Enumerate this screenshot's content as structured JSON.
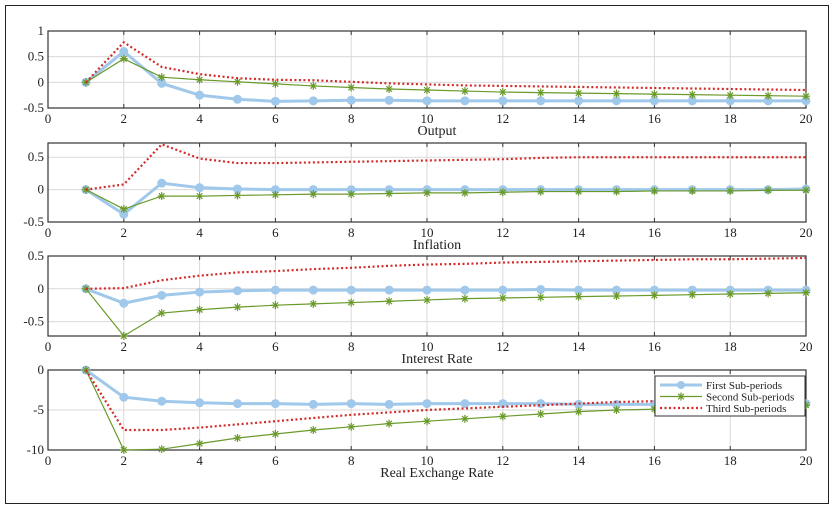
{
  "chart_data": [
    {
      "type": "line",
      "title": "Output",
      "x": [
        1,
        2,
        3,
        4,
        5,
        6,
        7,
        8,
        9,
        10,
        11,
        12,
        13,
        14,
        15,
        16,
        17,
        18,
        19,
        20
      ],
      "xlim": [
        0,
        20
      ],
      "xticks": [
        0,
        2,
        4,
        6,
        8,
        10,
        12,
        14,
        16,
        18,
        20
      ],
      "ylim": [
        -0.5,
        1
      ],
      "yticks": [
        -0.5,
        0,
        0.5,
        1
      ],
      "yticklabels": [
        "-0.5",
        "0",
        "0.5",
        "1"
      ],
      "grid": true,
      "series": [
        {
          "name": "First Sub-periods",
          "values": [
            0,
            0.6,
            -0.02,
            -0.25,
            -0.33,
            -0.37,
            -0.36,
            -0.35,
            -0.35,
            -0.36,
            -0.36,
            -0.36,
            -0.36,
            -0.36,
            -0.36,
            -0.36,
            -0.36,
            -0.36,
            -0.36,
            -0.36
          ]
        },
        {
          "name": "Second Sub-periods",
          "values": [
            0,
            0.46,
            0.1,
            0.05,
            0.01,
            -0.03,
            -0.07,
            -0.1,
            -0.13,
            -0.15,
            -0.17,
            -0.19,
            -0.2,
            -0.21,
            -0.22,
            -0.23,
            -0.24,
            -0.25,
            -0.26,
            -0.27
          ]
        },
        {
          "name": "Third Sub-periods",
          "values": [
            0,
            0.78,
            0.3,
            0.16,
            0.08,
            0.05,
            0.04,
            0.01,
            -0.02,
            -0.04,
            -0.06,
            -0.07,
            -0.08,
            -0.09,
            -0.1,
            -0.11,
            -0.12,
            -0.13,
            -0.14,
            -0.15
          ]
        }
      ]
    },
    {
      "type": "line",
      "title": "Inflation",
      "x": [
        1,
        2,
        3,
        4,
        5,
        6,
        7,
        8,
        9,
        10,
        11,
        12,
        13,
        14,
        15,
        16,
        17,
        18,
        19,
        20
      ],
      "xlim": [
        0,
        20
      ],
      "xticks": [
        0,
        2,
        4,
        6,
        8,
        10,
        12,
        14,
        16,
        18,
        20
      ],
      "ylim": [
        -0.5,
        0.72
      ],
      "yticks": [
        -0.5,
        0,
        0.5
      ],
      "yticklabels": [
        "-0.5",
        "0",
        "0.5"
      ],
      "grid": true,
      "series": [
        {
          "name": "First Sub-periods",
          "values": [
            0,
            -0.38,
            0.1,
            0.03,
            0.01,
            0,
            0,
            0,
            0,
            0,
            0,
            0,
            0,
            0,
            0,
            0,
            0,
            0,
            0,
            0.01
          ]
        },
        {
          "name": "Second Sub-periods",
          "values": [
            0,
            -0.3,
            -0.1,
            -0.1,
            -0.09,
            -0.08,
            -0.07,
            -0.07,
            -0.06,
            -0.05,
            -0.05,
            -0.04,
            -0.03,
            -0.03,
            -0.03,
            -0.02,
            -0.02,
            -0.02,
            -0.01,
            -0.01
          ]
        },
        {
          "name": "Third Sub-periods",
          "values": [
            0,
            0.08,
            0.7,
            0.48,
            0.41,
            0.41,
            0.42,
            0.43,
            0.44,
            0.45,
            0.46,
            0.47,
            0.49,
            0.5,
            0.5,
            0.5,
            0.5,
            0.5,
            0.5,
            0.5
          ]
        }
      ]
    },
    {
      "type": "line",
      "title": "Interest Rate",
      "x": [
        1,
        2,
        3,
        4,
        5,
        6,
        7,
        8,
        9,
        10,
        11,
        12,
        13,
        14,
        15,
        16,
        17,
        18,
        19,
        20
      ],
      "xlim": [
        0,
        20
      ],
      "xticks": [
        0,
        2,
        4,
        6,
        8,
        10,
        12,
        14,
        16,
        18,
        20
      ],
      "ylim": [
        -0.72,
        0.5
      ],
      "yticks": [
        -0.5,
        0,
        0.5
      ],
      "yticklabels": [
        "-0.5",
        "0",
        "0.5"
      ],
      "grid": true,
      "series": [
        {
          "name": "First Sub-periods",
          "values": [
            0,
            -0.22,
            -0.1,
            -0.05,
            -0.03,
            -0.02,
            -0.02,
            -0.02,
            -0.02,
            -0.02,
            -0.02,
            -0.02,
            -0.01,
            -0.02,
            -0.02,
            -0.02,
            -0.02,
            -0.02,
            -0.02,
            -0.02
          ]
        },
        {
          "name": "Second Sub-periods",
          "values": [
            0,
            -0.72,
            -0.37,
            -0.32,
            -0.28,
            -0.25,
            -0.23,
            -0.21,
            -0.19,
            -0.17,
            -0.15,
            -0.14,
            -0.13,
            -0.12,
            -0.11,
            -0.1,
            -0.09,
            -0.08,
            -0.07,
            -0.06
          ]
        },
        {
          "name": "Third Sub-periods",
          "values": [
            0,
            0.01,
            0.13,
            0.2,
            0.25,
            0.27,
            0.3,
            0.32,
            0.35,
            0.37,
            0.38,
            0.4,
            0.41,
            0.42,
            0.43,
            0.44,
            0.45,
            0.45,
            0.46,
            0.47
          ]
        }
      ]
    },
    {
      "type": "line",
      "title": "Real Exchange Rate",
      "x": [
        1,
        2,
        3,
        4,
        5,
        6,
        7,
        8,
        9,
        10,
        11,
        12,
        13,
        14,
        15,
        16,
        17,
        18,
        19,
        20
      ],
      "xlim": [
        0,
        20
      ],
      "xticks": [
        0,
        2,
        4,
        6,
        8,
        10,
        12,
        14,
        16,
        18,
        20
      ],
      "ylim": [
        -10,
        0
      ],
      "yticks": [
        -10,
        -5,
        0
      ],
      "yticklabels": [
        "-10",
        "-5",
        "0"
      ],
      "grid": true,
      "legend": "top-right",
      "series": [
        {
          "name": "First Sub-periods",
          "values": [
            0,
            -3.4,
            -3.9,
            -4.1,
            -4.2,
            -4.2,
            -4.3,
            -4.2,
            -4.3,
            -4.2,
            -4.2,
            -4.2,
            -4.2,
            -4.3,
            -4.3,
            -4.3,
            -4.3,
            -4.3,
            -4.3,
            -4.2
          ]
        },
        {
          "name": "Second Sub-periods",
          "values": [
            0,
            -10,
            -9.9,
            -9.2,
            -8.5,
            -8,
            -7.5,
            -7.1,
            -6.7,
            -6.4,
            -6.1,
            -5.8,
            -5.5,
            -5.2,
            -5,
            -4.9,
            -4.7,
            -4.6,
            -4.5,
            -4.4
          ]
        },
        {
          "name": "Third Sub-periods",
          "values": [
            0,
            -7.5,
            -7.5,
            -7.2,
            -6.8,
            -6.4,
            -6,
            -5.6,
            -5.3,
            -5,
            -4.8,
            -4.6,
            -4.4,
            -4.2,
            -4,
            -3.9,
            -3.8,
            -3.8,
            -3.8,
            -3.8
          ]
        }
      ]
    }
  ],
  "legend": {
    "entries": [
      "First Sub-periods",
      "Second Sub-periods",
      "Third Sub-periods"
    ]
  },
  "colors": {
    "first": "#9fc8ea",
    "second": "#6a9a2a",
    "third": "#d42a2a",
    "grid": "#d9d9d9",
    "axis": "#333333"
  }
}
